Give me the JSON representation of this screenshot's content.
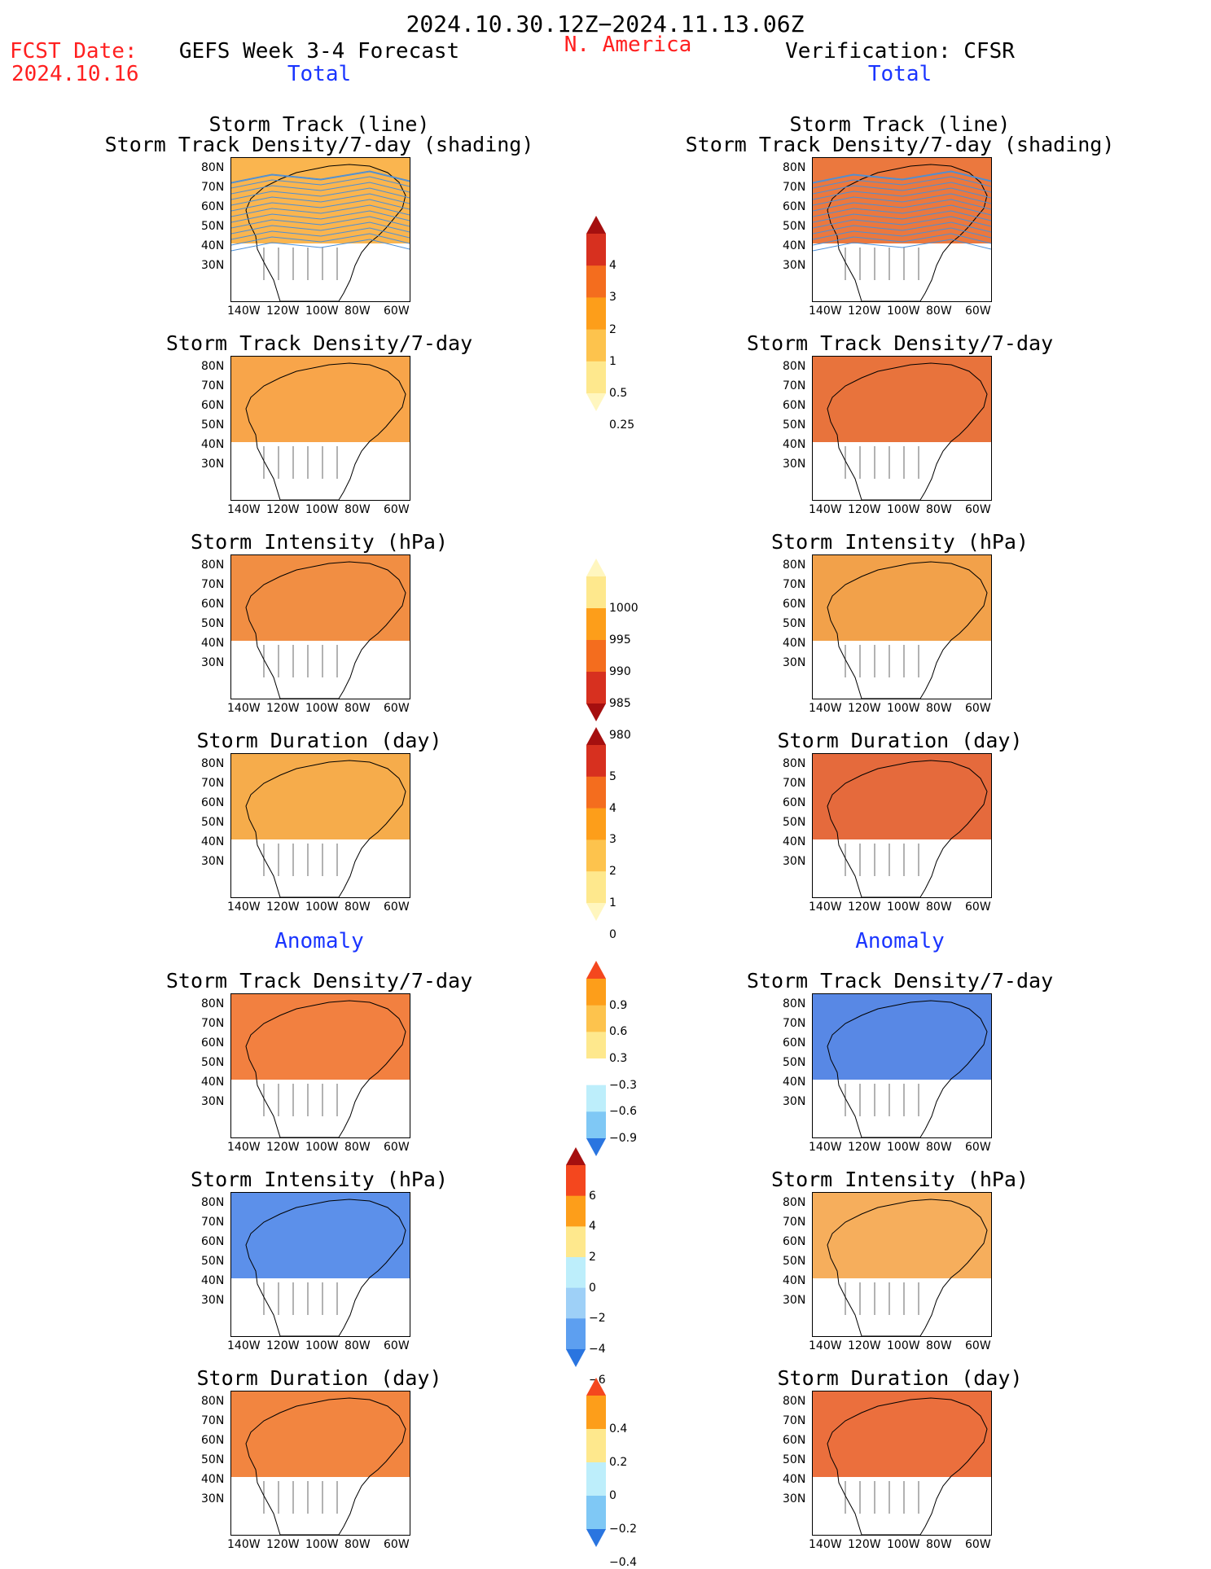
{
  "header": {
    "period": "2024.10.30.12Z−2024.11.13.06Z",
    "fcst_label": "FCST Date:",
    "fcst_date": "2024.10.16",
    "left_model": "GEFS Week 3-4 Forecast",
    "region": "N. America",
    "right_model": "Verification: CFSR",
    "total_left": "Total",
    "total_right": "Total",
    "anomaly_left": "Anomaly",
    "anomaly_right": "Anomaly"
  },
  "axes": {
    "lat_labels": [
      "80N",
      "70N",
      "60N",
      "50N",
      "40N",
      "30N"
    ],
    "lon_labels": [
      "140W",
      "120W",
      "100W",
      "80W",
      "60W"
    ]
  },
  "panels": [
    {
      "id": "f1",
      "title": [
        "Storm Track (line)",
        "Storm Track Density/7-day (shading)"
      ],
      "color": "#f9a830",
      "tracks": true
    },
    {
      "id": "o1",
      "title": [
        "Storm Track (line)",
        "Storm Track Density/7-day (shading)"
      ],
      "color": "#e8601c",
      "tracks": true
    },
    {
      "id": "f2",
      "title": [
        "Storm Track Density/7-day"
      ],
      "color": "#f7952a"
    },
    {
      "id": "o2",
      "title": [
        "Storm Track Density/7-day"
      ],
      "color": "#e45a1a"
    },
    {
      "id": "f3",
      "title": [
        "Storm Intensity (hPa)"
      ],
      "color": "#ee7a22"
    },
    {
      "id": "o3",
      "title": [
        "Storm Intensity (hPa)"
      ],
      "color": "#f0902a"
    },
    {
      "id": "f4",
      "title": [
        "Storm Duration (day)"
      ],
      "color": "#f59d2c"
    },
    {
      "id": "o4",
      "title": [
        "Storm Duration (day)"
      ],
      "color": "#e1501a"
    },
    {
      "id": "f5",
      "title": [
        "Storm Track Density/7-day"
      ],
      "color": "#f06a1e"
    },
    {
      "id": "o5",
      "title": [
        "Storm Track Density/7-day"
      ],
      "color": "#3b73e0"
    },
    {
      "id": "f6",
      "title": [
        "Storm Intensity (hPa)"
      ],
      "color": "#3f7de6"
    },
    {
      "id": "o6",
      "title": [
        "Storm Intensity (hPa)"
      ],
      "color": "#f4a040"
    },
    {
      "id": "f7",
      "title": [
        "Storm Duration (day)"
      ],
      "color": "#f0701f"
    },
    {
      "id": "o7",
      "title": [
        "Storm Duration (day)"
      ],
      "color": "#e8561b"
    }
  ],
  "colorbars": [
    {
      "id": "cb1",
      "labels": [
        "4",
        "3",
        "2",
        "1",
        "0.5",
        "0.25"
      ],
      "colors": [
        "#a50f0f",
        "#d7301f",
        "#f46d1e",
        "#fd9e1a",
        "#fdc34d",
        "#fee88d",
        "#fff6bf"
      ]
    },
    {
      "id": "cb2",
      "labels": [
        "1000",
        "995",
        "990",
        "985",
        "980"
      ],
      "colors": [
        "#fff6bf",
        "#fee88d",
        "#fd9e1a",
        "#f46d1e",
        "#d7301f",
        "#a50f0f"
      ]
    },
    {
      "id": "cb3",
      "labels": [
        "5",
        "4",
        "3",
        "2",
        "1",
        "0"
      ],
      "colors": [
        "#a50f0f",
        "#d7301f",
        "#f46d1e",
        "#fd9e1a",
        "#fdc34d",
        "#fee88d",
        "#fff6bf"
      ]
    },
    {
      "id": "cb4",
      "labels": [
        "0.9",
        "0.6",
        "0.3",
        "−0.3",
        "−0.6",
        "−0.9"
      ],
      "colors": [
        "#f4471e",
        "#fd9e1a",
        "#fdc34d",
        "#fee88d",
        "#ffffff",
        "#bdeefb",
        "#7fc8f5",
        "#2a75e0"
      ]
    },
    {
      "id": "cb5",
      "labels": [
        "6",
        "4",
        "2",
        "0",
        "−2",
        "−4",
        "−6"
      ],
      "colors": [
        "#a50f0f",
        "#f4471e",
        "#fd9e1a",
        "#fee88d",
        "#bdeefb",
        "#9ed0f7",
        "#5d9ff0",
        "#2a75e0"
      ]
    },
    {
      "id": "cb6",
      "labels": [
        "0.4",
        "0.2",
        "0",
        "−0.2",
        "−0.4"
      ],
      "colors": [
        "#f4471e",
        "#fd9e1a",
        "#fee88d",
        "#bdeefb",
        "#7fc8f5",
        "#2a75e0"
      ]
    }
  ]
}
